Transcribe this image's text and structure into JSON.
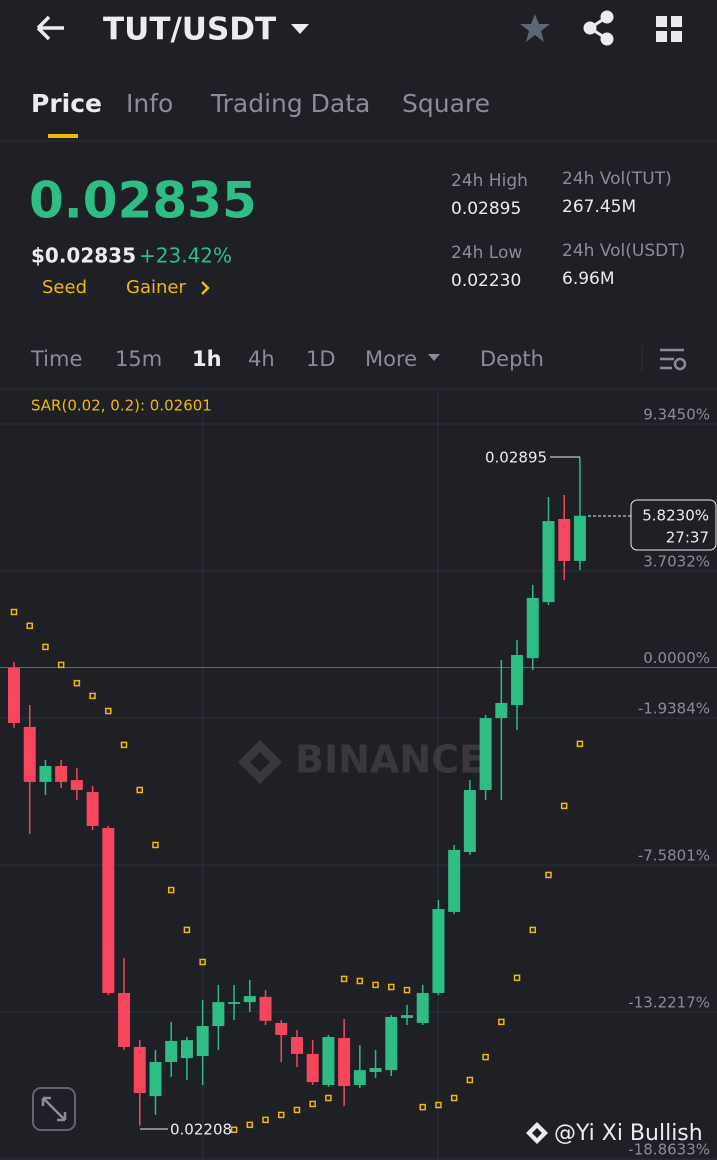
{
  "header": {
    "title": "TUT/USDT"
  },
  "tabs": [
    "Price",
    "Info",
    "Trading Data",
    "Square"
  ],
  "ticker": {
    "price": "0.02835",
    "usd": "$0.02835",
    "change": "+23.42%",
    "tags": [
      "Seed",
      "Gainer"
    ],
    "stats": [
      {
        "label": "24h High",
        "value": "0.02895"
      },
      {
        "label": "24h Vol(TUT)",
        "value": "267.45M"
      },
      {
        "label": "24h Low",
        "value": "0.02230"
      },
      {
        "label": "24h Vol(USDT)",
        "value": "6.96M"
      }
    ]
  },
  "intervals": [
    "Time",
    "15m",
    "1h",
    "4h",
    "1D",
    "More",
    "Depth"
  ],
  "chart_data": {
    "type": "candlestick",
    "indicator": "SAR(0.02, 0.2): 0.02601",
    "up_color": "#2ebd85",
    "down_color": "#f6465d",
    "sar_color": "#f0b90b",
    "open": [
      -0.02,
      -2.28,
      -4.39,
      -3.78,
      -4.32,
      -4.78,
      -6.16,
      -12.49,
      -14.56,
      -16.45,
      -15.14,
      -14.99,
      -14.91,
      -13.76,
      -12.91,
      -12.84,
      -12.64,
      -13.64,
      -14.18,
      -14.83,
      -16.02,
      -14.22,
      -16.02,
      -15.52,
      -15.45,
      -13.45,
      -13.64,
      -12.49,
      -9.38,
      -7.08,
      -4.7,
      -1.94,
      -1.44,
      0.36,
      2.51,
      5.7,
      4.09
    ],
    "high": [
      0.21,
      -1.44,
      -3.55,
      -3.55,
      -3.86,
      -4.55,
      -6.08,
      -11.15,
      -14.3,
      -14.68,
      -13.6,
      -14.18,
      -12.76,
      -12.18,
      -12.18,
      -11.99,
      -12.38,
      -13.53,
      -13.91,
      -14.3,
      -14.1,
      -13.49,
      -14.49,
      -14.68,
      -13.34,
      -12.95,
      -12.18,
      -8.92,
      -6.81,
      -4.32,
      -1.82,
      0.29,
      1.06,
      3.17,
      6.54,
      6.62,
      8.06
    ],
    "low": [
      -2.32,
      -6.39,
      -4.89,
      -4.62,
      -5.08,
      -6.24,
      -12.57,
      -14.68,
      -17.58,
      -17.17,
      -15.71,
      -15.83,
      -16.02,
      -14.68,
      -13.53,
      -13.22,
      -13.72,
      -15.14,
      -15.33,
      -16.02,
      -16.1,
      -16.83,
      -16.14,
      -15.75,
      -15.68,
      -13.72,
      -13.72,
      -12.57,
      -9.46,
      -7.19,
      -5.08,
      -5.08,
      -2.4,
      -0.1,
      2.4,
      3.36,
      3.74
    ],
    "close": [
      -2.13,
      -4.39,
      -3.78,
      -4.39,
      -4.7,
      -6.08,
      -12.49,
      -14.56,
      -16.33,
      -15.14,
      -14.33,
      -14.3,
      -13.76,
      -12.84,
      -12.84,
      -12.61,
      -13.56,
      -14.1,
      -14.83,
      -15.91,
      -14.18,
      -16.06,
      -15.45,
      -15.37,
      -13.41,
      -13.34,
      -12.49,
      -9.27,
      -7.0,
      -4.7,
      -1.94,
      -1.36,
      0.48,
      2.67,
      5.62,
      4.09,
      5.823
    ],
    "sar": [
      2.13,
      1.6,
      0.79,
      0.1,
      -0.6,
      -1.09,
      -1.67,
      -2.97,
      -4.7,
      -6.81,
      -8.54,
      -10.07,
      -11.3,
      null,
      -17.74,
      -17.55,
      -17.36,
      -17.17,
      -16.98,
      -16.75,
      -16.52,
      -11.95,
      -12.03,
      -12.18,
      -12.26,
      -12.38,
      -16.87,
      -16.79,
      -16.52,
      -15.83,
      -14.95,
      -13.6,
      -11.91,
      -10.07,
      -7.96,
      -5.31,
      -2.93
    ],
    "ylim": [
      -18.9,
      10.65
    ],
    "yticks": [
      {
        "value": 9.345,
        "label": "9.3450%"
      },
      {
        "value": 3.7032,
        "label": "3.7032%"
      },
      {
        "value": 0,
        "label": "0.0000%"
      },
      {
        "value": -1.9384,
        "label": "-1.9384%"
      },
      {
        "value": -7.5801,
        "label": "-7.5801%"
      },
      {
        "value": -13.2217,
        "label": "-13.2217%"
      },
      {
        "value": -18.8633,
        "label": "-18.8633%"
      }
    ],
    "grid": true,
    "high_label": "0.02895",
    "low_label": "0.02208",
    "last_label": "5.8230%",
    "countdown": "27:37",
    "watermark": "BINANCE"
  },
  "footer": {
    "credit": "@Yi Xi Bullish"
  }
}
